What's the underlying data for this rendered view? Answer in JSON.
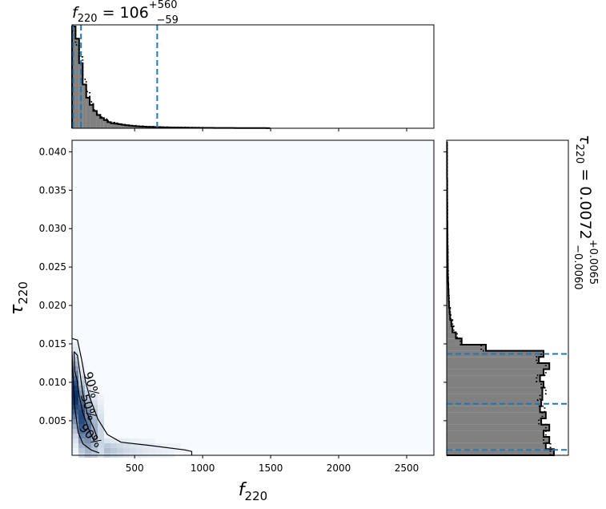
{
  "chart_data": [
    {
      "panel": "top-marginal",
      "type": "histogram",
      "title": {
        "main": "f",
        "sub": "220",
        "value": " = 106",
        "sup": "+560",
        "inf": "−59"
      },
      "xlim": [
        40,
        2700
      ],
      "quantiles": [
        47,
        106,
        666
      ],
      "bins": {
        "x0": 40,
        "dx": 26,
        "values": [
          1.0,
          0.88,
          0.64,
          0.43,
          0.3,
          0.23,
          0.17,
          0.13,
          0.1,
          0.08,
          0.06,
          0.05,
          0.045,
          0.04,
          0.035,
          0.03,
          0.026,
          0.023,
          0.02,
          0.018,
          0.016,
          0.014,
          0.013,
          0.012,
          0.011,
          0.01,
          0.009,
          0.008,
          0.008,
          0.007,
          0.007,
          0.006,
          0.006,
          0.005,
          0.005,
          0.005,
          0.004,
          0.004,
          0.004,
          0.004,
          0.003,
          0.003,
          0.003,
          0.003,
          0.003,
          0.003,
          0.002,
          0.002,
          0.002,
          0.002,
          0.002,
          0.002,
          0.002,
          0.002,
          0.002,
          0.001
        ]
      },
      "prior_dotted": [
        0.96,
        0.82,
        0.7,
        0.48,
        0.36,
        0.26,
        0.18,
        0.14,
        0.11,
        0.09,
        0.07,
        0.055,
        0.05,
        0.04,
        0.035,
        0.03,
        0.03,
        0.025,
        0.02,
        0.02,
        0.015,
        0.015,
        0.015,
        0.012,
        0.012,
        0.01,
        0.01,
        0.009,
        0.008,
        0.008,
        0.007,
        0.007,
        0.006,
        0.006,
        0.005,
        0.005,
        0.005,
        0.004,
        0.004,
        0.004
      ],
      "xticks": [
        500,
        1000,
        1500,
        2000,
        2500
      ]
    },
    {
      "panel": "joint-density",
      "type": "heatmap",
      "xlabel": {
        "main": "f",
        "sub": "220"
      },
      "ylabel": {
        "main": "τ",
        "sub": "220"
      },
      "xlim": [
        40,
        2700
      ],
      "ylim": [
        0.0005,
        0.0415
      ],
      "xticks": [
        500,
        1000,
        1500,
        2000,
        2500
      ],
      "xticklabels": [
        "500",
        "1000",
        "1500",
        "2000",
        "2500"
      ],
      "yticks": [
        0.005,
        0.01,
        0.015,
        0.02,
        0.025,
        0.03,
        0.035,
        0.04
      ],
      "yticklabels": [
        "0.005",
        "0.010",
        "0.015",
        "0.020",
        "0.025",
        "0.030",
        "0.035",
        "0.040"
      ],
      "contours": [
        {
          "label": "90%",
          "points": [
            [
              40,
              0.0157
            ],
            [
              80,
              0.0155
            ],
            [
              110,
              0.013
            ],
            [
              140,
              0.01
            ],
            [
              175,
              0.0078
            ],
            [
              230,
              0.0052
            ],
            [
              300,
              0.0032
            ],
            [
              400,
              0.0022
            ],
            [
              600,
              0.0018
            ],
            [
              870,
              0.0012
            ],
            [
              920,
              0.001
            ],
            [
              920,
              0.0005
            ]
          ]
        },
        {
          "label": "50%",
          "points": [
            [
              55,
              0.014
            ],
            [
              80,
              0.0135
            ],
            [
              100,
              0.011
            ],
            [
              120,
              0.0085
            ],
            [
              150,
              0.006
            ],
            [
              200,
              0.004
            ],
            [
              225,
              0.0028
            ],
            [
              200,
              0.0024
            ],
            [
              160,
              0.004
            ],
            [
              120,
              0.006
            ],
            [
              95,
              0.008
            ],
            [
              80,
              0.01
            ],
            [
              60,
              0.0115
            ],
            [
              55,
              0.014
            ]
          ]
        },
        {
          "label": "90%",
          "points": [
            [
              40,
              0.014
            ],
            [
              50,
              0.01
            ],
            [
              60,
              0.0068
            ],
            [
              85,
              0.0035
            ],
            [
              120,
              0.002
            ],
            [
              180,
              0.0012
            ],
            [
              240,
              0.0008
            ]
          ]
        }
      ],
      "contour_labels": [
        {
          "text": "90%",
          "x": 155,
          "y": 0.0095,
          "angle": 72
        },
        {
          "text": "50%",
          "x": 133,
          "y": 0.0066,
          "angle": 72
        },
        {
          "text": "90%",
          "x": 155,
          "y": 0.0027,
          "angle": 48
        }
      ]
    },
    {
      "panel": "right-marginal",
      "type": "histogram",
      "title": {
        "main": "τ",
        "sub": "220",
        "value": " = 0.0072",
        "sup": "+0.0065",
        "inf": "−0.0060"
      },
      "ylim": [
        0.0005,
        0.0415
      ],
      "quantiles": [
        0.0012,
        0.0072,
        0.0137
      ],
      "bins": {
        "y0": 0.0005,
        "dy": 0.0008,
        "values": [
          0.93,
          0.86,
          0.89,
          0.84,
          0.89,
          0.82,
          0.86,
          0.81,
          0.82,
          0.83,
          0.83,
          0.84,
          0.81,
          0.84,
          0.89,
          0.8,
          0.84,
          0.34,
          0.13,
          0.08,
          0.05,
          0.04,
          0.03,
          0.025,
          0.02,
          0.018,
          0.016,
          0.014,
          0.012,
          0.01,
          0.01,
          0.009,
          0.008,
          0.008,
          0.007,
          0.007,
          0.006,
          0.006,
          0.005,
          0.005,
          0.005,
          0.004,
          0.004,
          0.004,
          0.004,
          0.003,
          0.003,
          0.003,
          0.003,
          0.003,
          0.003
        ]
      },
      "prior_dotted": [
        0.9,
        0.9,
        0.84,
        0.86,
        0.86,
        0.8,
        0.83,
        0.85,
        0.79,
        0.81,
        0.86,
        0.82,
        0.78,
        0.86,
        0.86,
        0.78,
        0.82,
        0.3,
        0.12,
        0.09,
        0.06,
        0.05,
        0.035,
        0.03,
        0.02,
        0.02,
        0.015,
        0.015,
        0.012,
        0.012,
        0.01,
        0.01,
        0.01,
        0.009,
        0.008,
        0.008,
        0.007,
        0.007,
        0.006,
        0.006,
        0.006,
        0.005,
        0.005,
        0.005,
        0.005,
        0.004,
        0.004,
        0.004,
        0.004,
        0.004,
        0.004
      ]
    }
  ],
  "colors": {
    "hist_fill": "#808080",
    "hist_edge": "#000000",
    "quantile_line": "#1f77b4",
    "contour": "#000000",
    "heat_low": "#f7fbff",
    "heat_high": "#08306b"
  }
}
